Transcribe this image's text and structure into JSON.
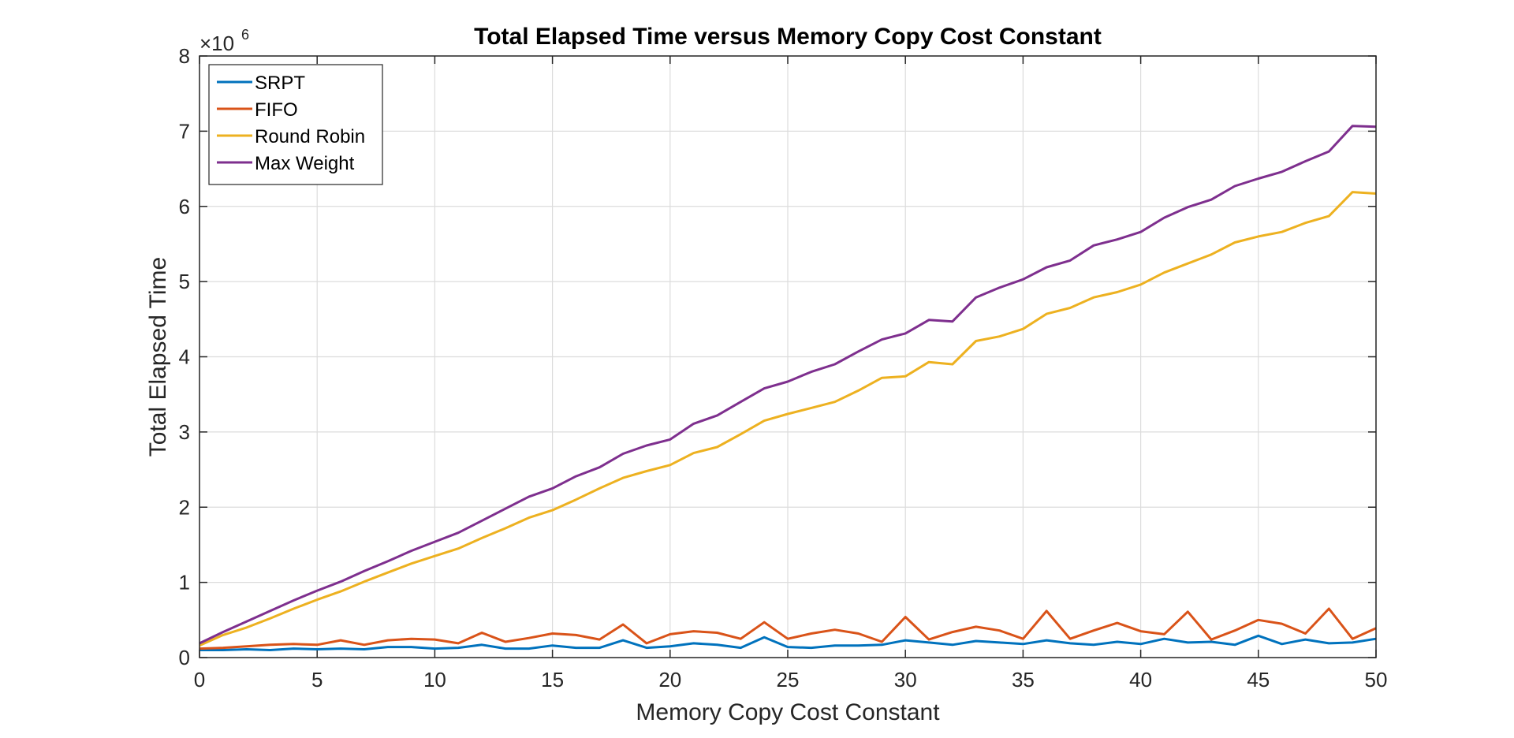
{
  "chart_data": {
    "type": "line",
    "title": "Total Elapsed Time versus Memory Copy Cost Constant",
    "xlabel": "Memory Copy Cost Constant",
    "ylabel": "Total Elapsed Time",
    "y_exponent_base": "×10",
    "y_exponent_power": "6",
    "xlim": [
      0,
      50
    ],
    "ylim": [
      0,
      8
    ],
    "xticks": [
      0,
      5,
      10,
      15,
      20,
      25,
      30,
      35,
      40,
      45,
      50
    ],
    "yticks": [
      0,
      1,
      2,
      3,
      4,
      5,
      6,
      7,
      8
    ],
    "grid": true,
    "legend_position": "top-left",
    "x": [
      0,
      1,
      2,
      3,
      4,
      5,
      6,
      7,
      8,
      9,
      10,
      11,
      12,
      13,
      14,
      15,
      16,
      17,
      18,
      19,
      20,
      21,
      22,
      23,
      24,
      25,
      26,
      27,
      28,
      29,
      30,
      31,
      32,
      33,
      34,
      35,
      36,
      37,
      38,
      39,
      40,
      41,
      42,
      43,
      44,
      45,
      46,
      47,
      48,
      49,
      50
    ],
    "series": [
      {
        "name": "SRPT",
        "color": "#0072BD",
        "values": [
          0.1,
          0.1,
          0.11,
          0.1,
          0.12,
          0.11,
          0.12,
          0.11,
          0.14,
          0.14,
          0.12,
          0.13,
          0.17,
          0.12,
          0.12,
          0.16,
          0.13,
          0.13,
          0.23,
          0.13,
          0.15,
          0.19,
          0.17,
          0.13,
          0.27,
          0.14,
          0.13,
          0.16,
          0.16,
          0.17,
          0.23,
          0.2,
          0.17,
          0.22,
          0.2,
          0.18,
          0.23,
          0.19,
          0.17,
          0.21,
          0.18,
          0.25,
          0.2,
          0.21,
          0.17,
          0.29,
          0.18,
          0.24,
          0.19,
          0.2,
          0.25
        ]
      },
      {
        "name": "FIFO",
        "color": "#D95319",
        "values": [
          0.12,
          0.13,
          0.15,
          0.17,
          0.18,
          0.17,
          0.23,
          0.17,
          0.23,
          0.25,
          0.24,
          0.19,
          0.33,
          0.21,
          0.26,
          0.32,
          0.3,
          0.24,
          0.44,
          0.19,
          0.31,
          0.35,
          0.33,
          0.25,
          0.47,
          0.25,
          0.32,
          0.37,
          0.32,
          0.21,
          0.54,
          0.24,
          0.34,
          0.41,
          0.36,
          0.25,
          0.62,
          0.25,
          0.36,
          0.46,
          0.35,
          0.31,
          0.61,
          0.24,
          0.36,
          0.5,
          0.45,
          0.32,
          0.65,
          0.25,
          0.39
        ]
      },
      {
        "name": "Round Robin",
        "color": "#EDB120",
        "values": [
          0.16,
          0.3,
          0.4,
          0.52,
          0.65,
          0.77,
          0.88,
          1.01,
          1.13,
          1.25,
          1.35,
          1.45,
          1.59,
          1.72,
          1.86,
          1.96,
          2.1,
          2.25,
          2.39,
          2.48,
          2.56,
          2.72,
          2.8,
          2.97,
          3.15,
          3.24,
          3.32,
          3.4,
          3.55,
          3.72,
          3.74,
          3.93,
          3.9,
          4.21,
          4.27,
          4.37,
          4.57,
          4.65,
          4.79,
          4.86,
          4.96,
          5.12,
          5.24,
          5.36,
          5.52,
          5.6,
          5.66,
          5.78,
          5.87,
          6.19,
          6.17
        ]
      },
      {
        "name": "Max Weight",
        "color": "#7E2F8E",
        "values": [
          0.19,
          0.34,
          0.48,
          0.62,
          0.76,
          0.89,
          1.01,
          1.15,
          1.28,
          1.42,
          1.54,
          1.66,
          1.82,
          1.98,
          2.14,
          2.25,
          2.41,
          2.53,
          2.71,
          2.82,
          2.9,
          3.11,
          3.22,
          3.4,
          3.58,
          3.67,
          3.8,
          3.9,
          4.07,
          4.23,
          4.31,
          4.49,
          4.47,
          4.79,
          4.92,
          5.03,
          5.19,
          5.28,
          5.48,
          5.56,
          5.66,
          5.85,
          5.99,
          6.09,
          6.27,
          6.37,
          6.46,
          6.6,
          6.73,
          7.07,
          7.06
        ]
      }
    ]
  }
}
